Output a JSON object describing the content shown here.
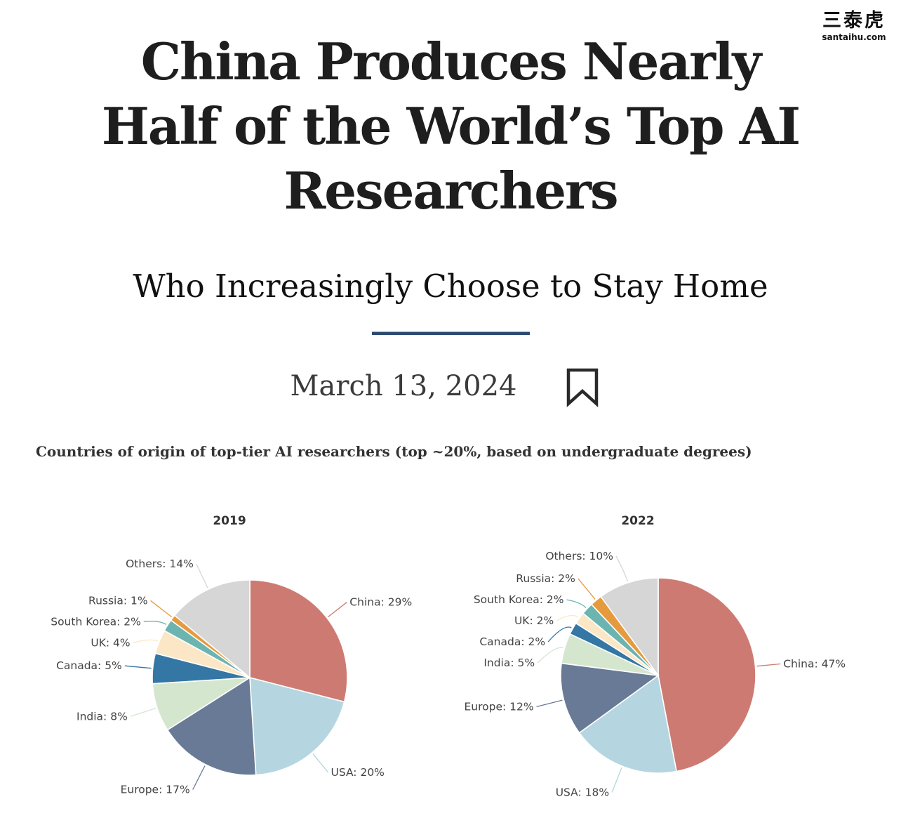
{
  "logo": {
    "cn": "三泰虎",
    "en": "santaihu.com"
  },
  "article": {
    "headline": "China Produces Nearly Half of the World’s Top AI Researchers",
    "subtitle": "Who Increasingly Choose to Stay Home",
    "date": "March 13, 2024"
  },
  "icons": {
    "bookmark": "bookmark-icon"
  },
  "chart_heading": "Countries of origin of top-tier AI researchers (top ~20%, based on undergraduate degrees)",
  "colors": {
    "China": "#cd7b72",
    "USA": "#b5d6e0",
    "Europe": "#697a96",
    "India": "#d5e6cf",
    "Canada": "#3477a4",
    "UK": "#fbe7c6",
    "South Korea": "#6cb4b0",
    "Russia": "#e69a3f",
    "Others": "#d6d6d6"
  },
  "chart_data": [
    {
      "type": "pie",
      "title": "2019",
      "categories": [
        "China",
        "USA",
        "Europe",
        "India",
        "Canada",
        "UK",
        "South Korea",
        "Russia",
        "Others"
      ],
      "values": [
        29,
        20,
        17,
        8,
        5,
        4,
        2,
        1,
        14
      ],
      "labels": [
        "China: 29%",
        "USA: 20%",
        "Europe: 17%",
        "India: 8%",
        "Canada: 5%",
        "UK: 4%",
        "South Korea: 2%",
        "Russia: 1%",
        "Others: 14%"
      ]
    },
    {
      "type": "pie",
      "title": "2022",
      "categories": [
        "China",
        "USA",
        "Europe",
        "India",
        "Canada",
        "UK",
        "South Korea",
        "Russia",
        "Others"
      ],
      "values": [
        47,
        18,
        12,
        5,
        2,
        2,
        2,
        2,
        10
      ],
      "labels": [
        "China: 47%",
        "USA: 18%",
        "Europe: 12%",
        "India: 5%",
        "Canada: 2%",
        "UK: 2%",
        "South Korea: 2%",
        "Russia: 2%",
        "Others: 10%"
      ]
    }
  ]
}
